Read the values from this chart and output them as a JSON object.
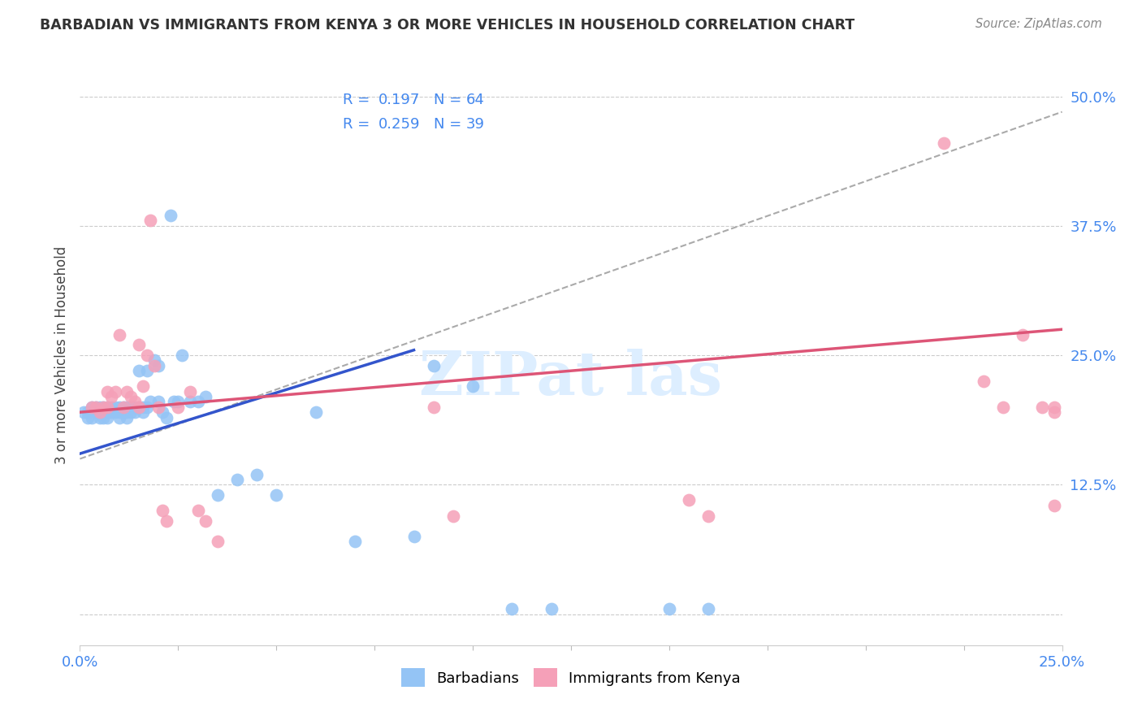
{
  "title": "BARBADIAN VS IMMIGRANTS FROM KENYA 3 OR MORE VEHICLES IN HOUSEHOLD CORRELATION CHART",
  "source": "Source: ZipAtlas.com",
  "ylabel": "3 or more Vehicles in Household",
  "xmin": 0.0,
  "xmax": 0.25,
  "ymin": -0.03,
  "ymax": 0.53,
  "barbadian_color": "#94c4f5",
  "kenya_color": "#f5a0b8",
  "blue_line_color": "#3355cc",
  "pink_line_color": "#dd5577",
  "gray_line_color": "#aaaaaa",
  "legend_color": "#4488ee",
  "barbadian_R": "0.197",
  "barbadian_N": "64",
  "kenya_R": "0.259",
  "kenya_N": "39",
  "legend_label_1": "Barbadians",
  "legend_label_2": "Immigrants from Kenya",
  "blue_line_x0": 0.0,
  "blue_line_y0": 0.155,
  "blue_line_x1": 0.085,
  "blue_line_y1": 0.255,
  "pink_line_x0": 0.0,
  "pink_line_x1": 0.25,
  "pink_line_y0": 0.195,
  "pink_line_y1": 0.275,
  "gray_line_x0": 0.0,
  "gray_line_y0": 0.15,
  "gray_line_x1": 0.25,
  "gray_line_y1": 0.485,
  "barbadian_x": [
    0.001,
    0.002,
    0.002,
    0.003,
    0.003,
    0.004,
    0.004,
    0.005,
    0.005,
    0.005,
    0.006,
    0.006,
    0.006,
    0.007,
    0.007,
    0.007,
    0.008,
    0.008,
    0.009,
    0.009,
    0.01,
    0.01,
    0.01,
    0.011,
    0.011,
    0.012,
    0.012,
    0.012,
    0.013,
    0.013,
    0.014,
    0.014,
    0.015,
    0.015,
    0.016,
    0.016,
    0.017,
    0.017,
    0.018,
    0.019,
    0.02,
    0.02,
    0.021,
    0.022,
    0.023,
    0.024,
    0.025,
    0.026,
    0.028,
    0.03,
    0.032,
    0.035,
    0.04,
    0.045,
    0.05,
    0.06,
    0.07,
    0.085,
    0.09,
    0.1,
    0.11,
    0.12,
    0.15,
    0.16
  ],
  "barbadian_y": [
    0.195,
    0.195,
    0.19,
    0.2,
    0.19,
    0.2,
    0.195,
    0.195,
    0.2,
    0.19,
    0.2,
    0.195,
    0.19,
    0.2,
    0.195,
    0.19,
    0.2,
    0.195,
    0.2,
    0.195,
    0.2,
    0.195,
    0.19,
    0.2,
    0.195,
    0.2,
    0.195,
    0.19,
    0.2,
    0.195,
    0.2,
    0.195,
    0.235,
    0.2,
    0.2,
    0.195,
    0.2,
    0.235,
    0.205,
    0.245,
    0.205,
    0.24,
    0.195,
    0.19,
    0.385,
    0.205,
    0.205,
    0.25,
    0.205,
    0.205,
    0.21,
    0.115,
    0.13,
    0.135,
    0.115,
    0.195,
    0.07,
    0.075,
    0.24,
    0.22,
    0.005,
    0.005,
    0.005,
    0.005
  ],
  "kenya_x": [
    0.003,
    0.004,
    0.005,
    0.006,
    0.007,
    0.007,
    0.008,
    0.009,
    0.01,
    0.011,
    0.012,
    0.013,
    0.014,
    0.015,
    0.015,
    0.016,
    0.017,
    0.018,
    0.019,
    0.02,
    0.021,
    0.022,
    0.025,
    0.028,
    0.03,
    0.032,
    0.035,
    0.09,
    0.095,
    0.155,
    0.16,
    0.22,
    0.23,
    0.235,
    0.24,
    0.245,
    0.248,
    0.248,
    0.248
  ],
  "kenya_y": [
    0.2,
    0.2,
    0.195,
    0.2,
    0.2,
    0.215,
    0.21,
    0.215,
    0.27,
    0.2,
    0.215,
    0.21,
    0.205,
    0.26,
    0.2,
    0.22,
    0.25,
    0.38,
    0.24,
    0.2,
    0.1,
    0.09,
    0.2,
    0.215,
    0.1,
    0.09,
    0.07,
    0.2,
    0.095,
    0.11,
    0.095,
    0.455,
    0.225,
    0.2,
    0.27,
    0.2,
    0.105,
    0.2,
    0.195
  ]
}
